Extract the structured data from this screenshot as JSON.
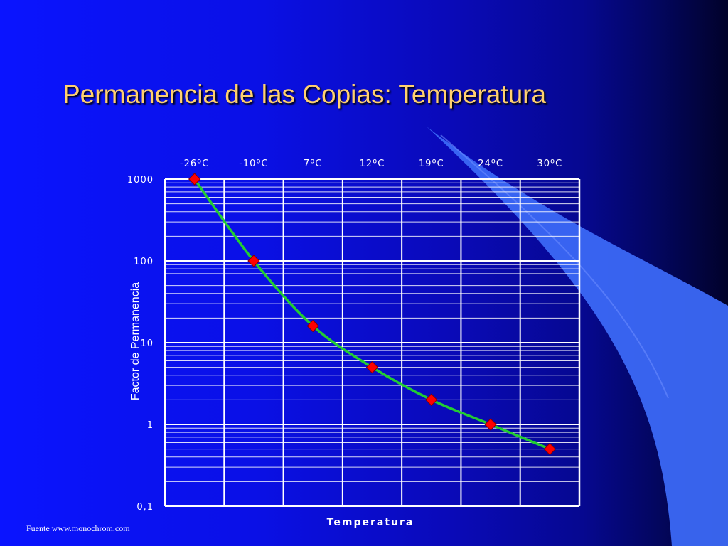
{
  "slide": {
    "title": "Permanencia de las Copias: Temperatura",
    "source": "Fuente www.monochrom.com"
  },
  "colors": {
    "title": "#ffd070",
    "line": "#22cc33",
    "marker": "#ff0000",
    "grid": "#ffffff",
    "accent_shape": "#3b68f5"
  },
  "chart_data": {
    "type": "line",
    "categories": [
      "-26ºC",
      "-10ºC",
      "7ºC",
      "12ºC",
      "19ºC",
      "24ºC",
      "30ºC"
    ],
    "values": [
      1000,
      100,
      16,
      5,
      2,
      1,
      0.5
    ],
    "xlabel": "Temperatura",
    "ylabel": "Factor de Permanencia",
    "y_scale": "log",
    "ylim": [
      0.1,
      1000
    ],
    "yticks": [
      {
        "value": 1000,
        "label": "1000"
      },
      {
        "value": 100,
        "label": "100"
      },
      {
        "value": 10,
        "label": "10"
      },
      {
        "value": 1,
        "label": "1"
      },
      {
        "value": 0.1,
        "label": "0,1"
      }
    ],
    "x_axis_position": "top",
    "grid": true,
    "marker": "diamond"
  }
}
